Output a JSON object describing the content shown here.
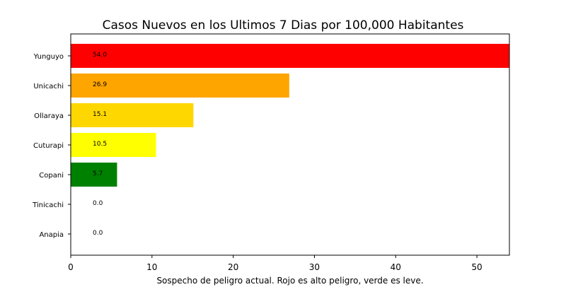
{
  "chart_data": {
    "type": "bar",
    "orientation": "horizontal",
    "title": "Casos Nuevos en los Ultimos 7 Dias por 100,000 Habitantes",
    "xlabel": "Sospecho de peligro actual. Rojo es alto peligro, verde es leve.",
    "ylabel": "",
    "xlim": [
      0,
      54.0
    ],
    "x_ticks": [
      0,
      10,
      20,
      30,
      40,
      50
    ],
    "grid": false,
    "categories": [
      "Yunguyo",
      "Unicachi",
      "Ollaraya",
      "Cuturapi",
      "Copani",
      "Tinicachi",
      "Anapia"
    ],
    "values": [
      54.0,
      26.9,
      15.1,
      10.5,
      5.7,
      0.0,
      0.0
    ],
    "data_labels": [
      "54.0",
      "26.9",
      "15.1",
      "10.5",
      "5.7",
      "0.0",
      "0.0"
    ],
    "colors": [
      "#ff0000",
      "#ffa500",
      "#ffd700",
      "#ffff00",
      "#008000",
      "#008000",
      "#008000"
    ]
  }
}
